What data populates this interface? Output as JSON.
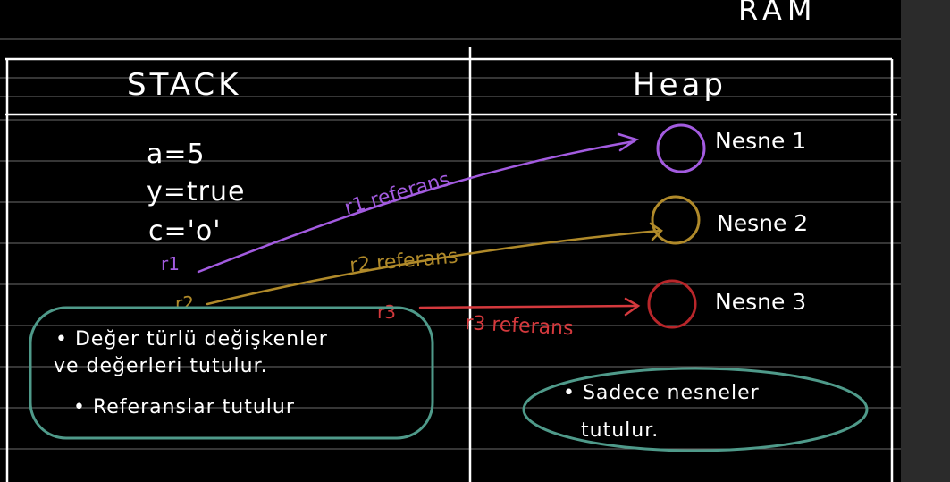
{
  "ram_label": "RAM",
  "headers": {
    "stack": "STACK",
    "heap": "Heap"
  },
  "stack_vars": [
    "a=5",
    "y=true",
    "c='o'"
  ],
  "ref_names": [
    "r1",
    "r2",
    "r3"
  ],
  "references": [
    {
      "label": "r1 referans",
      "color": "#a35be0"
    },
    {
      "label": "r2 referans",
      "color": "#b08a2a"
    },
    {
      "label": "r3 referans",
      "color": "#d4393d"
    }
  ],
  "objects": [
    {
      "label": "Nesne 1",
      "color": "#a35be0"
    },
    {
      "label": "Nesne 2",
      "color": "#b08a2a"
    },
    {
      "label": "Nesne 3",
      "color": "#b8262a"
    }
  ],
  "stack_note": [
    "• Değer türlü değişkenler",
    "ve değerleri tutulur.",
    "• Referanslar tutulur"
  ],
  "heap_note": [
    "• Sadece nesneler",
    "tutulur."
  ],
  "colors": {
    "line": "#ffffff",
    "note_border": "#4f9a8a",
    "background": "#000000"
  }
}
